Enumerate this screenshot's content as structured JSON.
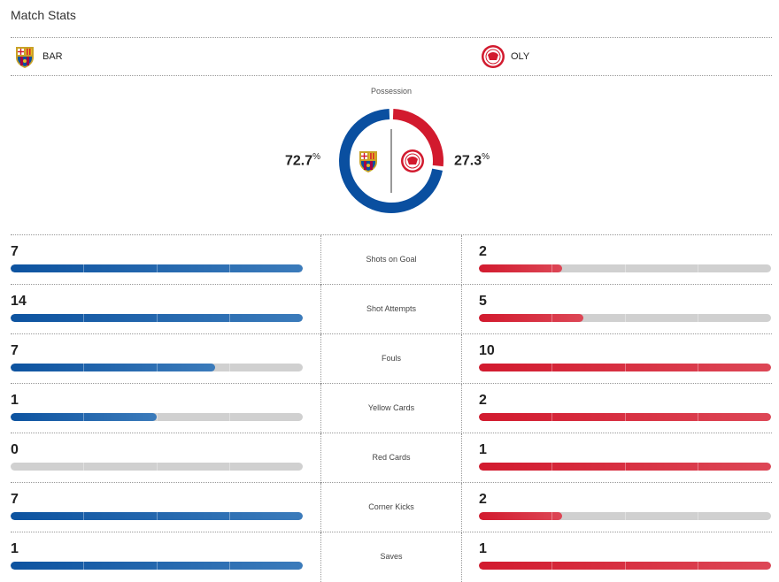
{
  "title": "Match Stats",
  "home": {
    "abbr": "BAR",
    "color": "#0a4fa0",
    "possession": 72.7,
    "possession_label": "72.7"
  },
  "away": {
    "abbr": "OLY",
    "color": "#d21a2e",
    "possession": 27.3,
    "possession_label": "27.3"
  },
  "possession_title": "Possession",
  "percent_sign": "%",
  "stats": [
    {
      "label": "Shots on Goal",
      "home": "7",
      "away": "2",
      "home_fill": 1,
      "away_fill": 0.286
    },
    {
      "label": "Shot Attempts",
      "home": "14",
      "away": "5",
      "home_fill": 1,
      "away_fill": 0.357
    },
    {
      "label": "Fouls",
      "home": "7",
      "away": "10",
      "home_fill": 0.7,
      "away_fill": 1
    },
    {
      "label": "Yellow Cards",
      "home": "1",
      "away": "2",
      "home_fill": 0.5,
      "away_fill": 1
    },
    {
      "label": "Red Cards",
      "home": "0",
      "away": "1",
      "home_fill": 0,
      "away_fill": 1
    },
    {
      "label": "Corner Kicks",
      "home": "7",
      "away": "2",
      "home_fill": 1,
      "away_fill": 0.286
    },
    {
      "label": "Saves",
      "home": "1",
      "away": "1",
      "home_fill": 1,
      "away_fill": 1
    }
  ]
}
